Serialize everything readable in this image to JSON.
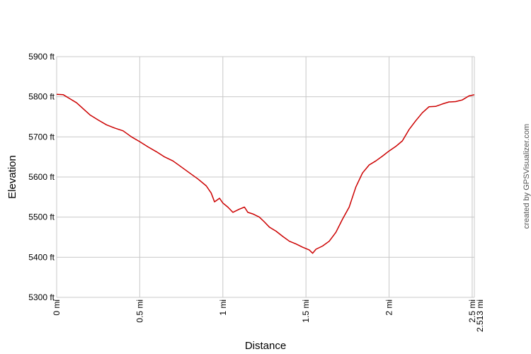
{
  "chart_data": {
    "type": "line",
    "title": "",
    "xlabel": "Distance",
    "ylabel": "Elevation",
    "xlim": [
      0,
      2.513
    ],
    "ylim": [
      5300,
      5900
    ],
    "x_unit": "mi",
    "y_unit": "ft",
    "grid": true,
    "legend": "none",
    "line_color": "#cc0000",
    "grid_color": "#c8c8c8",
    "x_ticks": [
      {
        "value": 0,
        "label": "0 mi"
      },
      {
        "value": 0.5,
        "label": "0.5 mi"
      },
      {
        "value": 1,
        "label": "1 mi"
      },
      {
        "value": 1.5,
        "label": "1.5 mi"
      },
      {
        "value": 2,
        "label": "2 mi"
      },
      {
        "value": 2.5,
        "label": "2.5 mi"
      },
      {
        "value": 2.513,
        "label": "2.513 mi"
      }
    ],
    "y_ticks": [
      {
        "value": 5300,
        "label": "5300 ft"
      },
      {
        "value": 5400,
        "label": "5400 ft"
      },
      {
        "value": 5500,
        "label": "5500 ft"
      },
      {
        "value": 5600,
        "label": "5600 ft"
      },
      {
        "value": 5700,
        "label": "5700 ft"
      },
      {
        "value": 5800,
        "label": "5800 ft"
      },
      {
        "value": 5900,
        "label": "5900 ft"
      }
    ],
    "series": [
      {
        "x": [
          0,
          0.04,
          0.08,
          0.12,
          0.16,
          0.2,
          0.25,
          0.3,
          0.35,
          0.4,
          0.45,
          0.5,
          0.55,
          0.6,
          0.65,
          0.7,
          0.75,
          0.8,
          0.85,
          0.9,
          0.93,
          0.95,
          0.98,
          1.0,
          1.03,
          1.06,
          1.1,
          1.13,
          1.15,
          1.18,
          1.22,
          1.25,
          1.28,
          1.32,
          1.36,
          1.4,
          1.44,
          1.48,
          1.52,
          1.54,
          1.56,
          1.6,
          1.64,
          1.68,
          1.72,
          1.76,
          1.8,
          1.84,
          1.88,
          1.92,
          1.96,
          2.0,
          2.04,
          2.08,
          2.12,
          2.16,
          2.2,
          2.24,
          2.28,
          2.32,
          2.36,
          2.4,
          2.44,
          2.48,
          2.513
        ],
        "y": [
          5806,
          5805,
          5795,
          5785,
          5770,
          5755,
          5742,
          5730,
          5722,
          5715,
          5700,
          5688,
          5675,
          5663,
          5650,
          5640,
          5625,
          5610,
          5595,
          5578,
          5560,
          5538,
          5547,
          5535,
          5525,
          5512,
          5520,
          5525,
          5512,
          5508,
          5500,
          5488,
          5475,
          5465,
          5452,
          5440,
          5433,
          5425,
          5418,
          5410,
          5420,
          5428,
          5440,
          5462,
          5495,
          5525,
          5575,
          5610,
          5630,
          5640,
          5652,
          5665,
          5676,
          5690,
          5718,
          5740,
          5760,
          5775,
          5776,
          5782,
          5787,
          5788,
          5792,
          5802,
          5805
        ]
      }
    ]
  },
  "credit": "created by GPSVisualizer.com"
}
